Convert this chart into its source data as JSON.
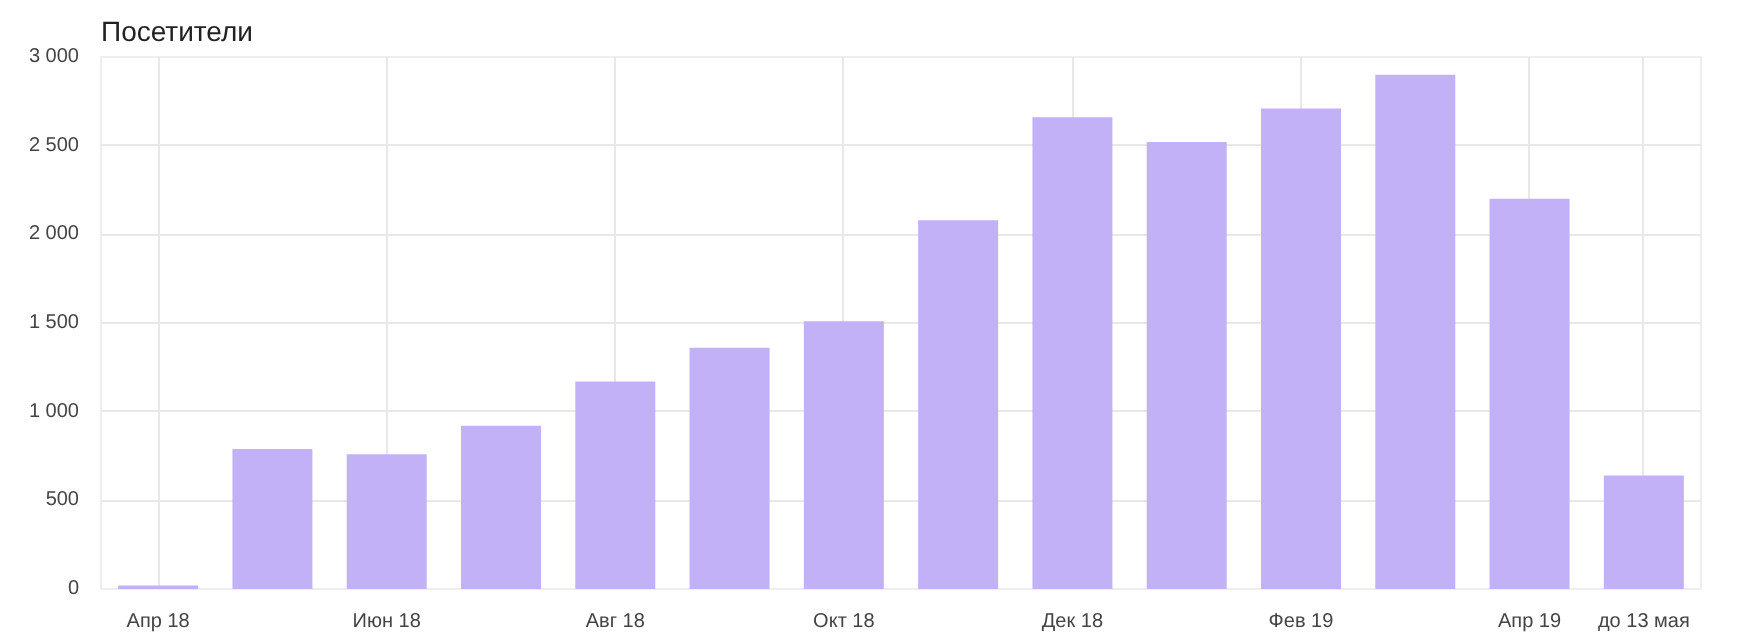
{
  "chart_data": {
    "type": "bar",
    "title": "Посетители",
    "categories": [
      "Апр 18",
      null,
      "Июн 18",
      null,
      "Авг 18",
      null,
      "Окт 18",
      null,
      "Дек 18",
      null,
      "Фев 19",
      null,
      "Апр 19",
      "до 13 мая"
    ],
    "values": [
      20,
      790,
      760,
      920,
      1170,
      1360,
      1510,
      2080,
      2660,
      2520,
      2710,
      2900,
      2200,
      640
    ],
    "color": "#c3b1f7",
    "ylim": [
      0,
      3000
    ],
    "yticks": [
      0,
      {
        "value": 500,
        "label": "500"
      },
      {
        "value": 1000,
        "label": "1 000"
      },
      {
        "value": 1500,
        "label": "1 500"
      },
      {
        "value": 2000,
        "label": "2 000"
      },
      {
        "value": 2500,
        "label": "2 500"
      },
      {
        "value": 3000,
        "label": "3 000"
      }
    ],
    "grid": true
  }
}
